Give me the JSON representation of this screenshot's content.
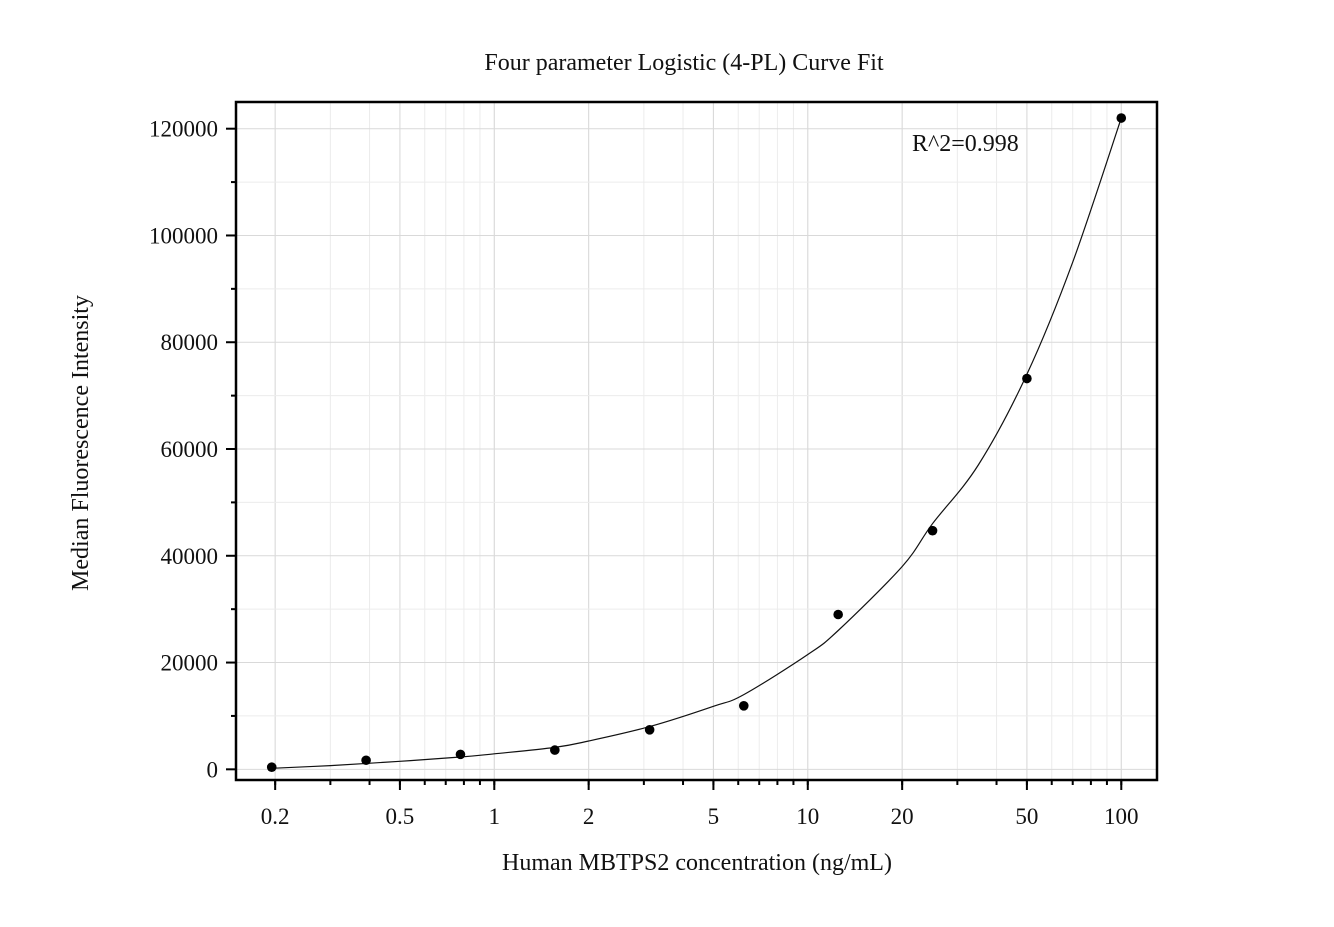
{
  "chart_data": {
    "type": "scatter",
    "title": "Four parameter Logistic (4-PL) Curve Fit",
    "xlabel": "Human MBTPS2 concentration (ng/mL)",
    "ylabel": "Median Fluorescence Intensity",
    "x_scale": "log",
    "xlim": [
      0.15,
      130
    ],
    "ylim": [
      -2000,
      125000
    ],
    "x_ticks": [
      0.2,
      0.5,
      1,
      2,
      5,
      10,
      20,
      50,
      100
    ],
    "x_tick_labels": [
      "0.2",
      "0.5",
      "1",
      "2",
      "5",
      "10",
      "20",
      "50",
      "100"
    ],
    "y_ticks": [
      0,
      20000,
      40000,
      60000,
      80000,
      100000,
      120000
    ],
    "y_tick_labels": [
      "0",
      "20000",
      "40000",
      "60000",
      "80000",
      "100000",
      "120000"
    ],
    "grid": true,
    "points": {
      "x": [
        0.195,
        0.39,
        0.78,
        1.56,
        3.13,
        6.25,
        12.5,
        25,
        50,
        100
      ],
      "y": [
        400,
        1700,
        2800,
        3600,
        7400,
        11900,
        29000,
        44700,
        73200,
        122000
      ]
    },
    "fit": {
      "x": [
        0.195,
        0.3,
        0.5,
        0.78,
        1,
        1.56,
        2,
        3.13,
        5,
        6.25,
        10,
        12.5,
        20,
        25,
        35,
        50,
        70,
        100
      ],
      "y": [
        200,
        700,
        1500,
        2300,
        2900,
        4100,
        5300,
        8000,
        11800,
        14000,
        21500,
        26000,
        38000,
        46000,
        57000,
        74000,
        95000,
        122000
      ]
    },
    "annotations": [
      {
        "text": "R^2=0.998"
      }
    ]
  }
}
